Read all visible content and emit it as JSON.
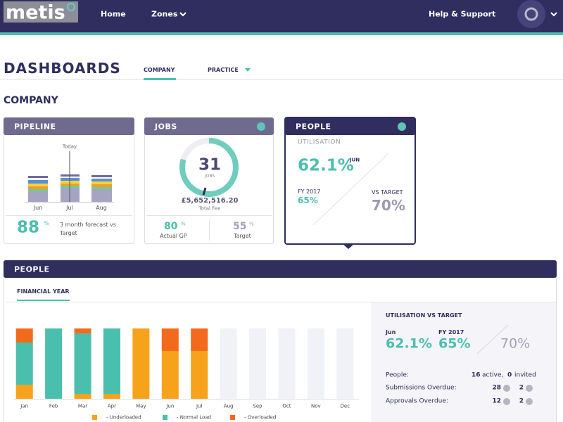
{
  "header": {
    "logo": "metis",
    "nav": [
      "Home",
      "Zones",
      "Help & Support"
    ]
  },
  "page": {
    "title": "DASHBOARDS",
    "tabs": [
      "COMPANY",
      "PRACTICE"
    ],
    "section": "COMPANY"
  },
  "cards": {
    "pipeline": {
      "title": "PIPELINE",
      "today": "Today",
      "months": [
        "Jun",
        "Jul",
        "Aug"
      ],
      "value": "88",
      "unit": "%",
      "note": "3 month forecast vs Target"
    },
    "jobs": {
      "title": "JOBS",
      "count": "31",
      "count_label": "JOBS",
      "fee": "£5,652,516.20",
      "fee_label": "Total Fee",
      "actual": {
        "value": "80",
        "unit": "%",
        "label": "Actual GP"
      },
      "target": {
        "value": "55",
        "unit": "%",
        "label": "Target"
      }
    },
    "people": {
      "title": "PEOPLE",
      "subtitle": "UTILISATION",
      "value": "62.1%",
      "month": "JUN",
      "fy_label": "FY 2017",
      "fy": "65%",
      "vs_label": "VS TARGET",
      "vs": "70%"
    }
  },
  "panel": {
    "title": "PEOPLE",
    "tab": "FINANCIAL YEAR",
    "chart": {
      "type": "bar",
      "stacked": true,
      "categories": [
        "Jan",
        "Feb",
        "Mar",
        "Apr",
        "May",
        "Jun",
        "Jul",
        "Aug",
        "Sep",
        "Oct",
        "Nov",
        "Dec"
      ],
      "ylim": [
        0,
        100
      ],
      "series": [
        {
          "name": "- Underloaded",
          "color": "#f7a21b",
          "values": [
            20,
            0,
            7,
            7,
            100,
            68,
            68,
            null,
            null,
            null,
            null,
            null
          ]
        },
        {
          "name": "- Normal Load",
          "color": "#4bbfae",
          "values": [
            60,
            100,
            86,
            93,
            0,
            0,
            0,
            null,
            null,
            null,
            null,
            null
          ]
        },
        {
          "name": "- Overloaded",
          "color": "#f26b1d",
          "values": [
            20,
            0,
            7,
            0,
            0,
            32,
            32,
            null,
            null,
            null,
            null,
            null
          ]
        }
      ]
    },
    "side": {
      "title": "UTILISATION VS TARGET",
      "jun_label": "Jun",
      "jun": "62.1%",
      "fy_label": "FY 2017",
      "fy": "65%",
      "target": "70%",
      "people": {
        "label": "People:",
        "active": "16",
        "active_label": "active,",
        "invited": "0",
        "invited_label": "invited"
      },
      "submissions": {
        "label": "Submissions Overdue:",
        "a": "28",
        "b": "2"
      },
      "approvals": {
        "label": "Approvals Overdue:",
        "a": "12",
        "b": "2"
      }
    }
  }
}
